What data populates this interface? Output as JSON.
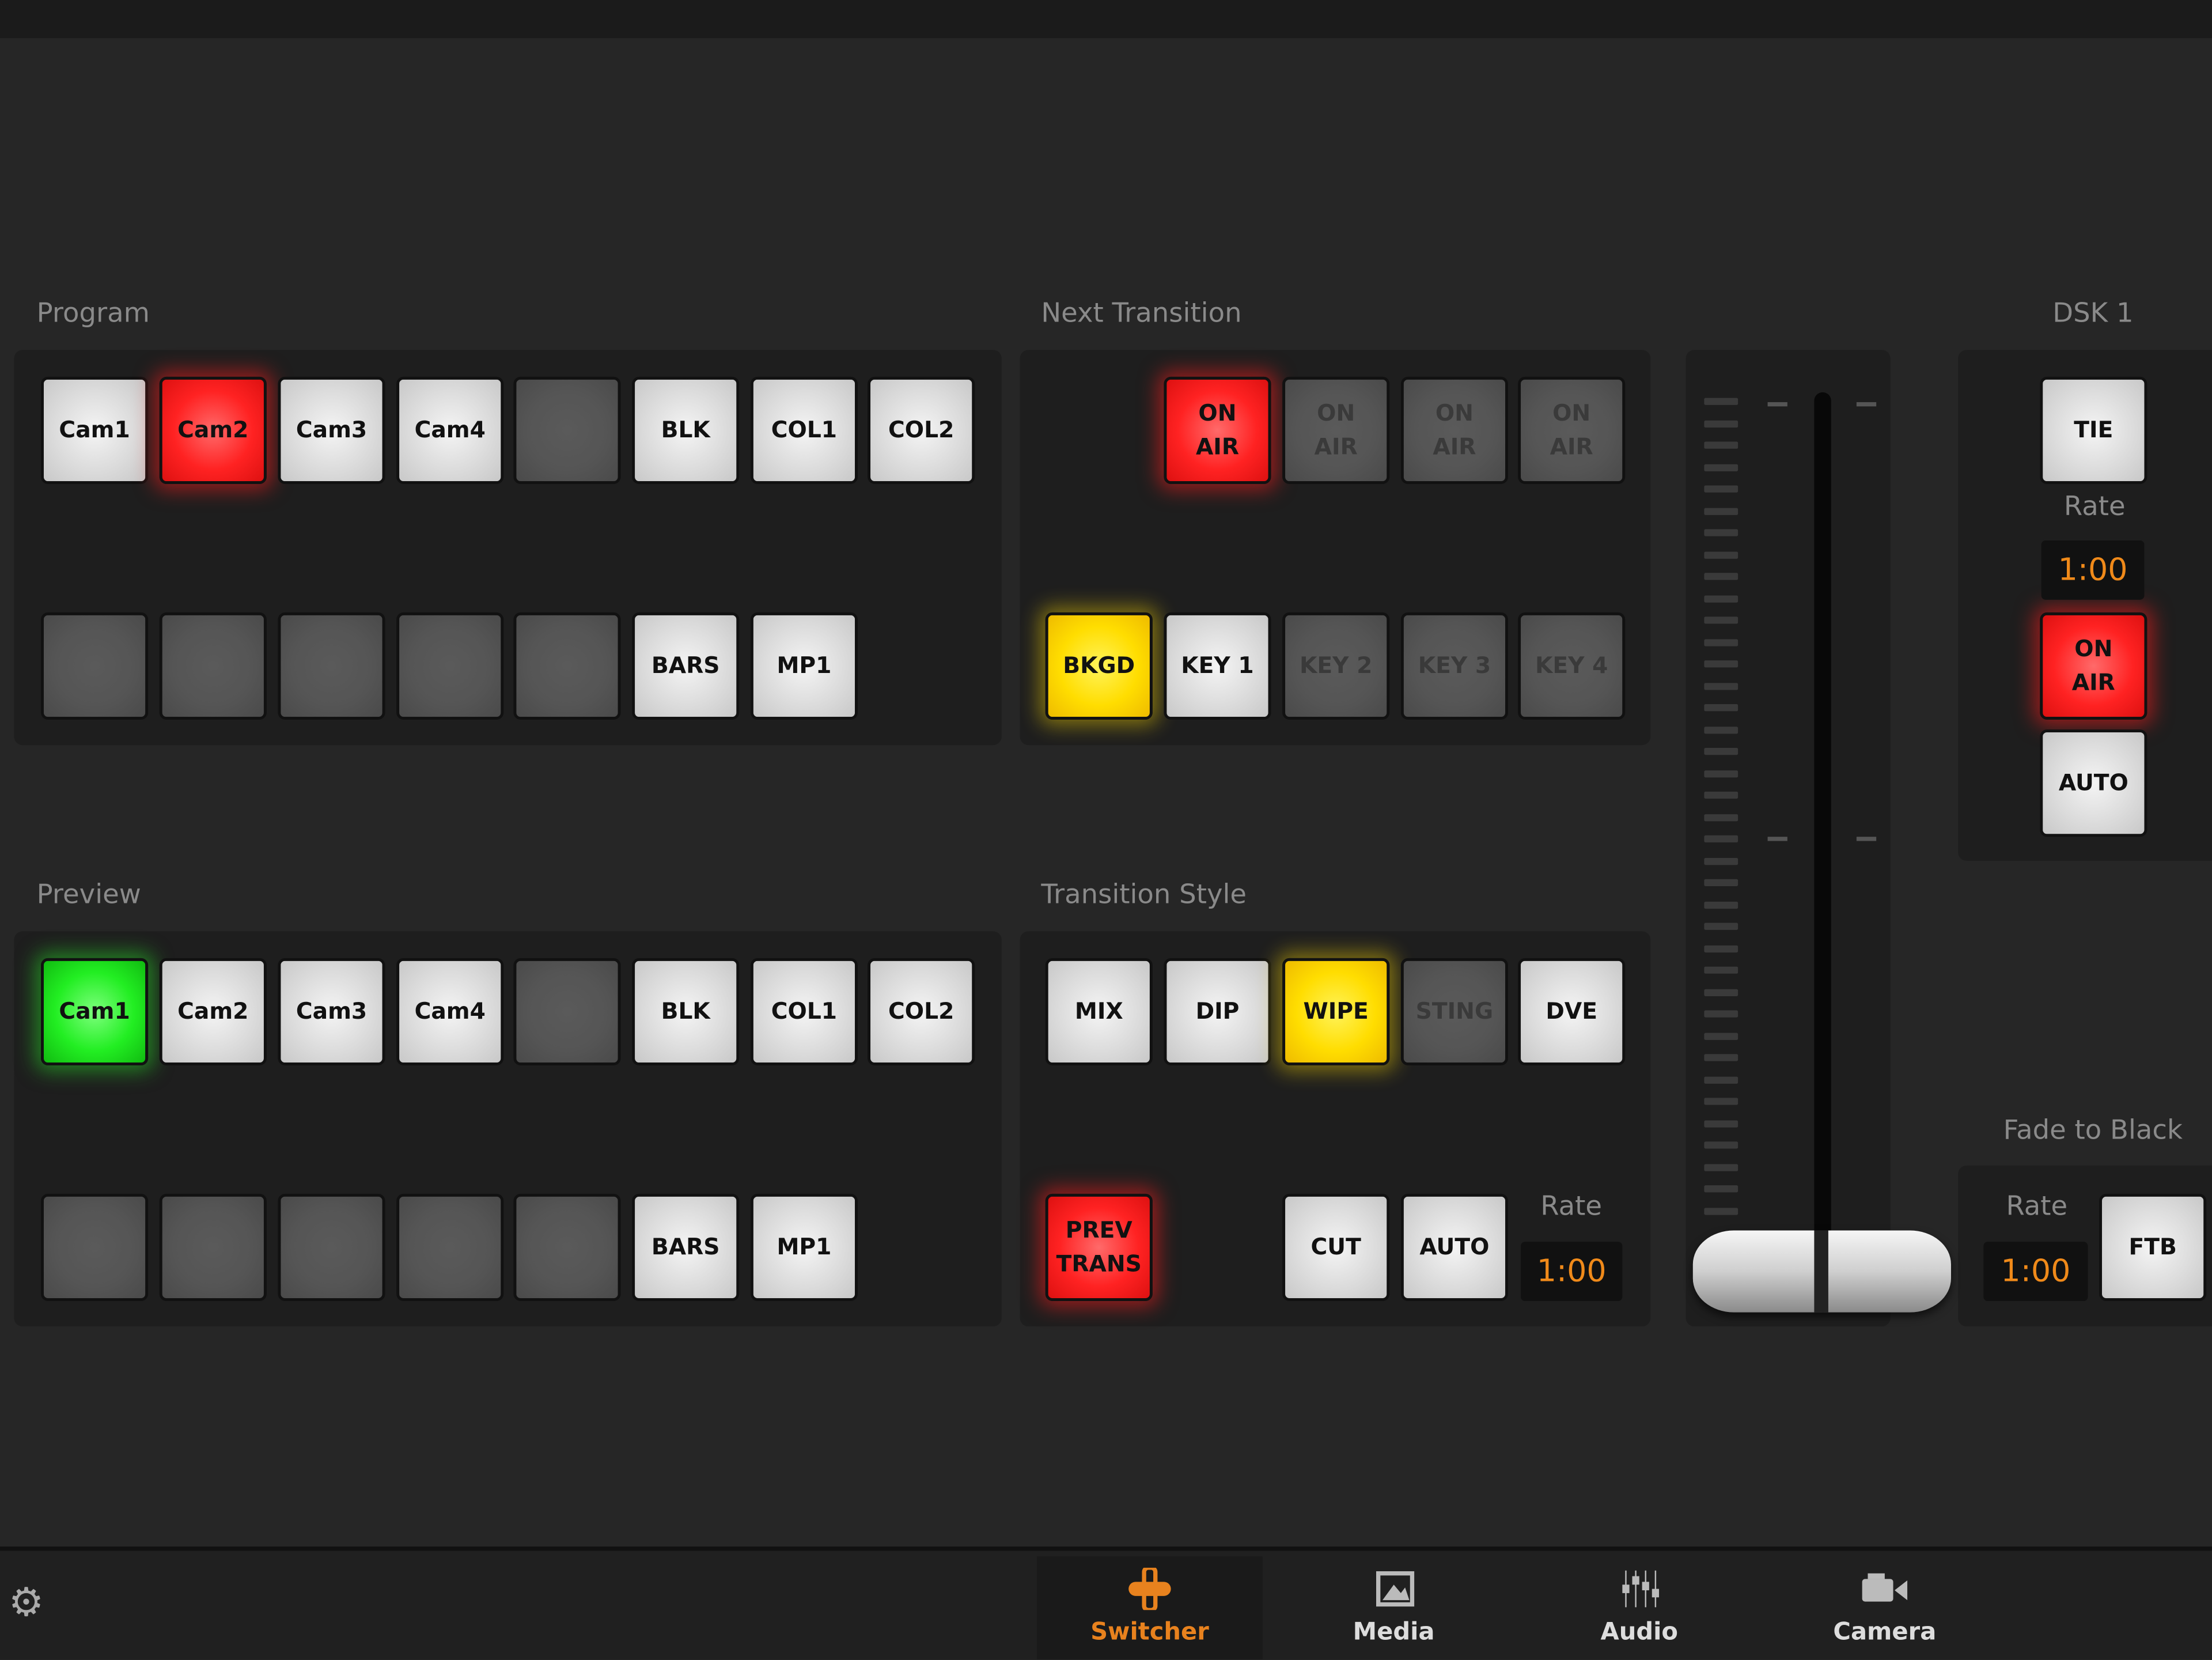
{
  "accent_color": "#e8821e",
  "sections": {
    "program": "Program",
    "preview": "Preview",
    "next_transition": "Next Transition",
    "transition_style": "Transition Style",
    "dsk": "DSK 1",
    "fade_to_black": "Fade to Black"
  },
  "program": {
    "row1": [
      {
        "label": "Cam1",
        "state": "white"
      },
      {
        "label": "Cam2",
        "state": "red"
      },
      {
        "label": "Cam3",
        "state": "white"
      },
      {
        "label": "Cam4",
        "state": "white"
      },
      {
        "label": "",
        "state": "gray"
      },
      {
        "label": "BLK",
        "state": "white"
      },
      {
        "label": "COL1",
        "state": "white"
      },
      {
        "label": "COL2",
        "state": "white"
      }
    ],
    "row2": [
      {
        "label": "",
        "state": "gray"
      },
      {
        "label": "",
        "state": "gray"
      },
      {
        "label": "",
        "state": "gray"
      },
      {
        "label": "",
        "state": "gray"
      },
      {
        "label": "",
        "state": "gray"
      },
      {
        "label": "BARS",
        "state": "white"
      },
      {
        "label": "MP1",
        "state": "white"
      }
    ]
  },
  "preview": {
    "row1": [
      {
        "label": "Cam1",
        "state": "green"
      },
      {
        "label": "Cam2",
        "state": "white"
      },
      {
        "label": "Cam3",
        "state": "white"
      },
      {
        "label": "Cam4",
        "state": "white"
      },
      {
        "label": "",
        "state": "gray"
      },
      {
        "label": "BLK",
        "state": "white"
      },
      {
        "label": "COL1",
        "state": "white"
      },
      {
        "label": "COL2",
        "state": "white"
      }
    ],
    "row2": [
      {
        "label": "",
        "state": "gray"
      },
      {
        "label": "",
        "state": "gray"
      },
      {
        "label": "",
        "state": "gray"
      },
      {
        "label": "",
        "state": "gray"
      },
      {
        "label": "",
        "state": "gray"
      },
      {
        "label": "BARS",
        "state": "white"
      },
      {
        "label": "MP1",
        "state": "white"
      }
    ]
  },
  "next_transition": {
    "on_air": [
      {
        "label": "ON\nAIR",
        "state": "red"
      },
      {
        "label": "ON\nAIR",
        "state": "gray"
      },
      {
        "label": "ON\nAIR",
        "state": "gray"
      },
      {
        "label": "ON\nAIR",
        "state": "gray"
      }
    ],
    "layers": [
      {
        "label": "BKGD",
        "state": "yellow"
      },
      {
        "label": "KEY 1",
        "state": "white"
      },
      {
        "label": "KEY 2",
        "state": "gray"
      },
      {
        "label": "KEY 3",
        "state": "gray"
      },
      {
        "label": "KEY 4",
        "state": "gray"
      }
    ]
  },
  "transition_style": {
    "styles": [
      {
        "label": "MIX",
        "state": "white"
      },
      {
        "label": "DIP",
        "state": "white"
      },
      {
        "label": "WIPE",
        "state": "yellow"
      },
      {
        "label": "STING",
        "state": "gray"
      },
      {
        "label": "DVE",
        "state": "white"
      }
    ],
    "prev_trans": {
      "label": "PREV\nTRANS",
      "state": "red"
    },
    "cut": {
      "label": "CUT",
      "state": "white"
    },
    "auto": {
      "label": "AUTO",
      "state": "white"
    },
    "rate_label": "Rate",
    "rate": "1:00"
  },
  "tbar": {
    "position": 1.0
  },
  "dsk": {
    "tie": {
      "label": "TIE",
      "state": "white"
    },
    "rate_label": "Rate",
    "rate": "1:00",
    "on_air": {
      "label": "ON\nAIR",
      "state": "red"
    },
    "auto": {
      "label": "AUTO",
      "state": "white"
    }
  },
  "ftb": {
    "rate_label": "Rate",
    "rate": "1:00",
    "button": {
      "label": "FTB",
      "state": "white"
    }
  },
  "bottom_nav": {
    "settings_icon": "gear-icon",
    "tabs": [
      {
        "label": "Switcher",
        "icon": "switcher-icon",
        "active": true
      },
      {
        "label": "Media",
        "icon": "media-icon",
        "active": false
      },
      {
        "label": "Audio",
        "icon": "audio-icon",
        "active": false
      },
      {
        "label": "Camera",
        "icon": "camera-icon",
        "active": false
      }
    ]
  }
}
